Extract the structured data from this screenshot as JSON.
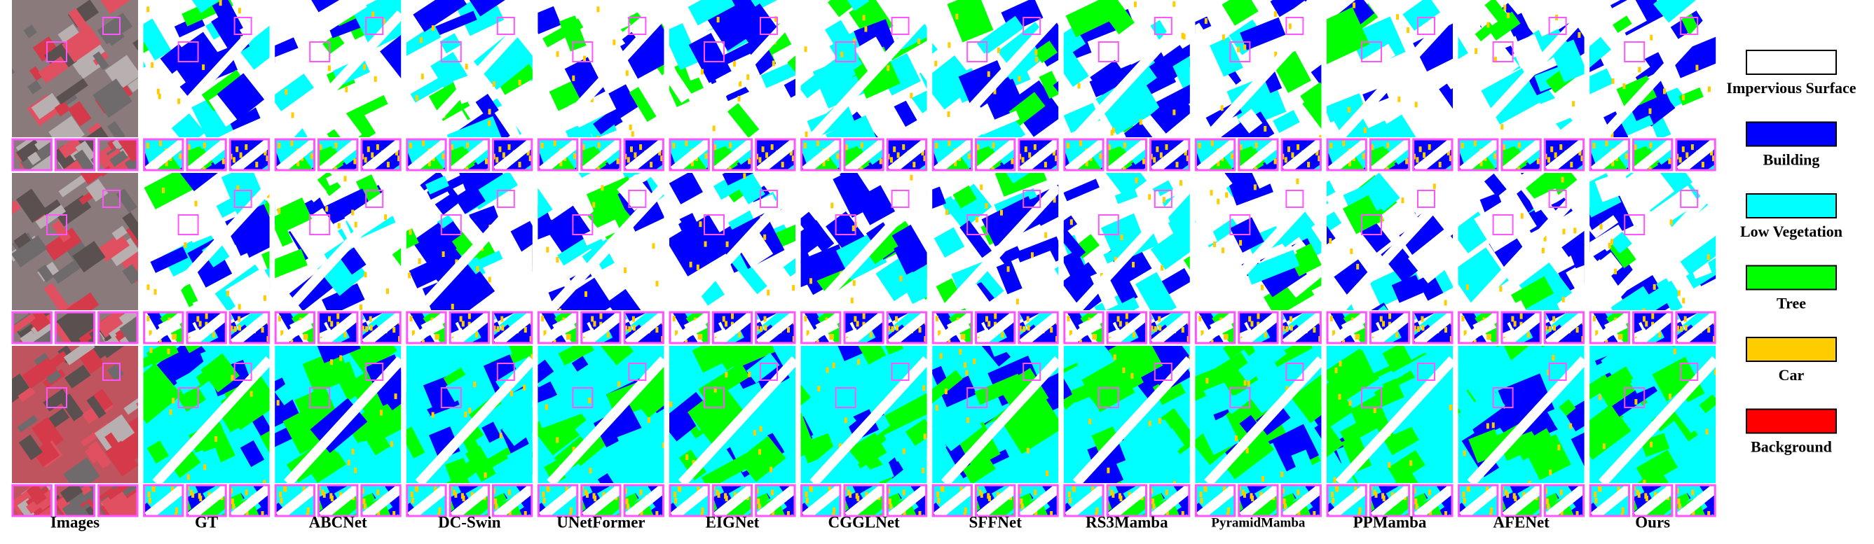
{
  "columns": [
    "Images",
    "GT",
    "ABCNet",
    "DC-Swin",
    "UNetFormer",
    "EIGNet",
    "CGGLNet",
    "SFFNet",
    "RS3Mamba",
    "PyramidMamba",
    "PPMamba",
    "AFENet",
    "Ours"
  ],
  "legend": [
    {
      "label": "Impervious Surface",
      "color": "#ffffff"
    },
    {
      "label": "Building",
      "color": "#0000ff"
    },
    {
      "label": "Low Vegetation",
      "color": "#00ffff"
    },
    {
      "label": "Tree",
      "color": "#00ff00"
    },
    {
      "label": "Car",
      "color": "#ffcc00"
    },
    {
      "label": "Background",
      "color": "#ff0000"
    }
  ]
}
